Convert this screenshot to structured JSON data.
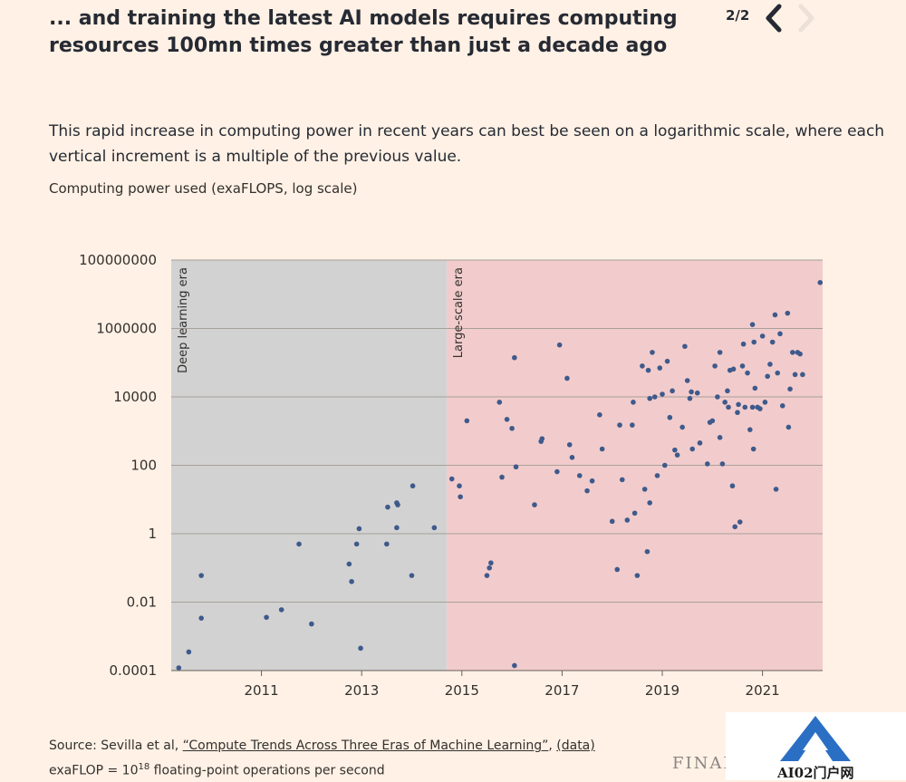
{
  "header": {
    "title": "... and training the latest AI models requires computing resources 100mn times greater than just a decade ago",
    "pager": "2/2",
    "prev_icon": "chevron-left-icon",
    "next_icon": "chevron-right-icon"
  },
  "subtitle": "This rapid increase in computing power in recent years can best be seen on a logarithmic scale, where each vertical increment is a multiple of the previous value.",
  "footer": {
    "source_prefix": "Source: Sevilla et al, ",
    "source_link": "“Compute Trends Across Three Eras of Machine Learning”",
    "source_sep": ", ",
    "data_link": "(data)",
    "note_prefix": "exaFLOP = 10",
    "note_exp": "18",
    "note_suffix": " floating-point operations per second",
    "brand": "FINANCIAL TIMES"
  },
  "watermark": {
    "text": "AI02门户网",
    "icon": "a-logo-icon"
  },
  "colors": {
    "background": "#fff1e5",
    "deep_era": "#d2d2d2",
    "large_era": "#f2cccc",
    "point": "#3e5a8c",
    "grid": "#a6a09a"
  },
  "chart_data": {
    "type": "scatter",
    "title": "",
    "ylabel": "Computing power used (exaFLOPS, log scale)",
    "xlabel": "",
    "yscale": "log",
    "xlim": [
      2009.2,
      2022.2
    ],
    "ylim": [
      0.0001,
      100000000
    ],
    "xticks": [
      2011,
      2013,
      2015,
      2017,
      2019,
      2021
    ],
    "yticks": [
      {
        "value": 0.0001,
        "label": "0.0001"
      },
      {
        "value": 0.01,
        "label": "0.01"
      },
      {
        "value": 1,
        "label": "1"
      },
      {
        "value": 100,
        "label": "100"
      },
      {
        "value": 10000,
        "label": "10000"
      },
      {
        "value": 1000000,
        "label": "1000000"
      },
      {
        "value": 100000000,
        "label": "100000000"
      }
    ],
    "eras": [
      {
        "name": "Deep learning era",
        "start": 2009.2,
        "end": 2014.7
      },
      {
        "name": "Large-scale era",
        "start": 2014.7,
        "end": 2022.2
      }
    ],
    "points": [
      [
        2009.35,
        0.00012
      ],
      [
        2009.55,
        0.00035
      ],
      [
        2009.8,
        0.06
      ],
      [
        2009.8,
        0.0034
      ],
      [
        2011.1,
        0.0036
      ],
      [
        2011.4,
        0.006
      ],
      [
        2011.75,
        0.5
      ],
      [
        2012.0,
        0.0023
      ],
      [
        2012.75,
        0.13
      ],
      [
        2012.8,
        0.04
      ],
      [
        2012.9,
        0.5
      ],
      [
        2012.95,
        1.4
      ],
      [
        2012.98,
        0.00045
      ],
      [
        2013.5,
        0.5
      ],
      [
        2013.52,
        6
      ],
      [
        2013.7,
        8
      ],
      [
        2013.72,
        7
      ],
      [
        2013.7,
        1.5
      ],
      [
        2014.0,
        0.06
      ],
      [
        2014.02,
        25
      ],
      [
        2014.45,
        1.5
      ],
      [
        2014.8,
        40
      ],
      [
        2014.95,
        25
      ],
      [
        2014.97,
        12
      ],
      [
        2015.1,
        2000
      ],
      [
        2015.5,
        0.06
      ],
      [
        2015.55,
        0.1
      ],
      [
        2015.58,
        0.14
      ],
      [
        2015.75,
        7000
      ],
      [
        2015.8,
        45
      ],
      [
        2015.9,
        2200
      ],
      [
        2016.0,
        1200
      ],
      [
        2016.05,
        140000
      ],
      [
        2016.08,
        90
      ],
      [
        2016.05,
        0.00014
      ],
      [
        2016.45,
        7
      ],
      [
        2016.58,
        500
      ],
      [
        2016.6,
        600
      ],
      [
        2016.95,
        330000
      ],
      [
        2016.9,
        65
      ],
      [
        2017.1,
        35000
      ],
      [
        2017.15,
        400
      ],
      [
        2017.2,
        170
      ],
      [
        2017.35,
        50
      ],
      [
        2017.5,
        18
      ],
      [
        2017.6,
        35
      ],
      [
        2017.75,
        3000
      ],
      [
        2017.8,
        300
      ],
      [
        2018.0,
        2.3
      ],
      [
        2018.1,
        0.09
      ],
      [
        2018.15,
        1500
      ],
      [
        2018.2,
        38
      ],
      [
        2018.3,
        2.5
      ],
      [
        2018.4,
        1500
      ],
      [
        2018.42,
        7000
      ],
      [
        2018.45,
        4
      ],
      [
        2018.5,
        0.06
      ],
      [
        2018.6,
        80000
      ],
      [
        2018.65,
        20
      ],
      [
        2018.7,
        0.3
      ],
      [
        2018.72,
        60000
      ],
      [
        2018.75,
        9000
      ],
      [
        2018.75,
        8
      ],
      [
        2018.8,
        200000
      ],
      [
        2018.85,
        10000
      ],
      [
        2018.9,
        50
      ],
      [
        2018.95,
        70000
      ],
      [
        2019.0,
        12000
      ],
      [
        2019.05,
        100
      ],
      [
        2019.1,
        110000
      ],
      [
        2019.15,
        2500
      ],
      [
        2019.2,
        15000
      ],
      [
        2019.25,
        280
      ],
      [
        2019.3,
        200
      ],
      [
        2019.4,
        1300
      ],
      [
        2019.45,
        300000
      ],
      [
        2019.5,
        30000
      ],
      [
        2019.55,
        9000
      ],
      [
        2019.58,
        14000
      ],
      [
        2019.6,
        300
      ],
      [
        2019.7,
        13000
      ],
      [
        2019.75,
        450
      ],
      [
        2019.9,
        110
      ],
      [
        2019.95,
        1800
      ],
      [
        2020.0,
        2000
      ],
      [
        2020.05,
        80000
      ],
      [
        2020.1,
        10000
      ],
      [
        2020.15,
        200000
      ],
      [
        2020.15,
        650
      ],
      [
        2020.2,
        110
      ],
      [
        2020.25,
        7000
      ],
      [
        2020.3,
        15000
      ],
      [
        2020.32,
        5000
      ],
      [
        2020.35,
        60000
      ],
      [
        2020.4,
        25
      ],
      [
        2020.42,
        65000
      ],
      [
        2020.45,
        1.6
      ],
      [
        2020.5,
        3500
      ],
      [
        2020.52,
        6000
      ],
      [
        2020.55,
        2.2
      ],
      [
        2020.6,
        80000
      ],
      [
        2020.62,
        350000
      ],
      [
        2020.65,
        5000
      ],
      [
        2020.7,
        50000
      ],
      [
        2020.75,
        1100
      ],
      [
        2020.8,
        1300000
      ],
      [
        2020.8,
        5000
      ],
      [
        2020.82,
        300
      ],
      [
        2020.83,
        400000
      ],
      [
        2020.85,
        18000
      ],
      [
        2020.9,
        5000
      ],
      [
        2020.95,
        4500
      ],
      [
        2021.0,
        600000
      ],
      [
        2021.05,
        7000
      ],
      [
        2021.1,
        40000
      ],
      [
        2021.15,
        90000
      ],
      [
        2021.2,
        400000
      ],
      [
        2021.25,
        2500000
      ],
      [
        2021.27,
        20
      ],
      [
        2021.3,
        50000
      ],
      [
        2021.35,
        700000
      ],
      [
        2021.4,
        5500
      ],
      [
        2021.5,
        2800000
      ],
      [
        2021.52,
        1300
      ],
      [
        2021.55,
        17000
      ],
      [
        2021.6,
        200000
      ],
      [
        2021.65,
        45000
      ],
      [
        2021.7,
        200000
      ],
      [
        2021.75,
        180000
      ],
      [
        2021.8,
        45000
      ],
      [
        2022.15,
        22000000
      ]
    ]
  }
}
